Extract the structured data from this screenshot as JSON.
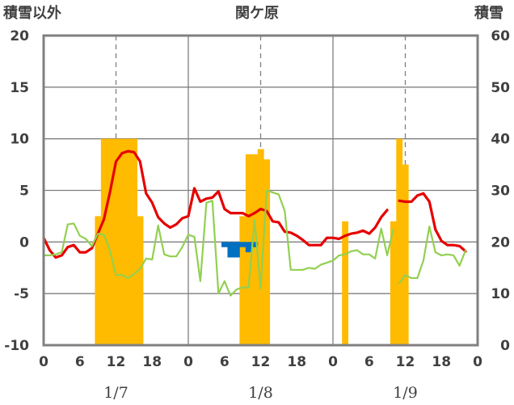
{
  "chart_data": {
    "type": "bar+line",
    "title": "関ケ原",
    "ylabel_left": "積雪以外",
    "ylabel_right": "積雪",
    "ylim_left": [
      -10,
      20
    ],
    "ylim_right": [
      0,
      60
    ],
    "yticks_left": [
      "-10",
      "-5",
      "0",
      "5",
      "10",
      "15",
      "20"
    ],
    "yticks_right": [
      "0",
      "10",
      "20",
      "30",
      "40",
      "50",
      "60"
    ],
    "xrange_hours": [
      0,
      72
    ],
    "xtick_labels": [
      "0",
      "6",
      "12",
      "18",
      "0",
      "6",
      "12",
      "18",
      "0",
      "6",
      "12",
      "18",
      "0"
    ],
    "date_labels": [
      "1/7",
      "1/8",
      "1/9"
    ],
    "grid": true,
    "colors": {
      "snow_depth": "#ffbb00",
      "precip": "#0070c0",
      "temperature": "#e60000",
      "humidity_line": "#92d050",
      "baseline": "#7030a0",
      "frame": "#808080"
    },
    "series": [
      {
        "kind": "bar",
        "axis": "right",
        "values": [
          [
            9,
            25
          ],
          [
            10,
            40
          ],
          [
            11,
            40
          ],
          [
            12,
            40
          ],
          [
            13,
            40
          ],
          [
            14,
            40
          ],
          [
            15,
            40
          ],
          [
            16,
            25
          ],
          [
            33,
            25
          ],
          [
            34,
            37
          ],
          [
            35,
            37
          ],
          [
            36,
            38
          ],
          [
            37,
            36
          ],
          [
            50,
            24
          ],
          [
            58,
            24
          ],
          [
            59,
            40
          ],
          [
            60,
            35
          ]
        ]
      },
      {
        "kind": "bar",
        "axis": "left",
        "values": [
          [
            30,
            -0.5
          ],
          [
            31,
            -1.5
          ],
          [
            32,
            -1.5
          ],
          [
            33,
            -0.5
          ],
          [
            34,
            -1.0
          ],
          [
            35,
            -0.5
          ]
        ]
      },
      {
        "kind": "line",
        "axis": "left",
        "values": [
          [
            0,
            0.4
          ],
          [
            1,
            -0.8
          ],
          [
            2,
            -1.5
          ],
          [
            3,
            -1.3
          ],
          [
            4,
            -0.5
          ],
          [
            5,
            -0.3
          ],
          [
            6,
            -1.0
          ],
          [
            7,
            -1.0
          ],
          [
            8,
            -0.6
          ],
          [
            9,
            0.8
          ],
          [
            10,
            2.2
          ],
          [
            11,
            4.8
          ],
          [
            12,
            7.8
          ],
          [
            13,
            8.6
          ],
          [
            14,
            8.8
          ],
          [
            15,
            8.7
          ],
          [
            16,
            7.8
          ],
          [
            17,
            4.7
          ],
          [
            18,
            3.8
          ],
          [
            19,
            2.4
          ],
          [
            20,
            1.8
          ],
          [
            21,
            1.4
          ],
          [
            22,
            1.7
          ],
          [
            23,
            2.3
          ],
          [
            24,
            2.5
          ],
          [
            25,
            5.2
          ],
          [
            26,
            3.9
          ],
          [
            27,
            4.2
          ],
          [
            28,
            4.3
          ],
          [
            29,
            4.9
          ],
          [
            30,
            3.2
          ],
          [
            31,
            2.8
          ],
          [
            32,
            2.8
          ],
          [
            33,
            2.8
          ],
          [
            34,
            2.5
          ],
          [
            35,
            2.8
          ],
          [
            36,
            3.2
          ],
          [
            37,
            3.0
          ],
          [
            38,
            2.0
          ],
          [
            39,
            1.9
          ],
          [
            40,
            1.0
          ],
          [
            41,
            0.9
          ],
          [
            42,
            0.6
          ],
          [
            43,
            0.2
          ],
          [
            44,
            -0.3
          ],
          [
            45,
            -0.3
          ],
          [
            46,
            -0.3
          ],
          [
            47,
            0.4
          ],
          [
            48,
            0.4
          ],
          [
            49,
            0.3
          ],
          [
            50,
            0.6
          ],
          [
            51,
            0.8
          ],
          [
            52,
            0.9
          ],
          [
            53,
            1.1
          ],
          [
            54,
            0.8
          ],
          [
            55,
            1.4
          ],
          [
            56,
            2.4
          ],
          [
            57,
            3.1
          ],
          [
            null,
            null
          ],
          [
            59,
            4.0
          ],
          [
            60,
            3.9
          ],
          [
            61,
            3.9
          ],
          [
            62,
            4.5
          ],
          [
            63,
            4.7
          ],
          [
            64,
            3.9
          ],
          [
            65,
            1.2
          ],
          [
            66,
            0.1
          ],
          [
            67,
            -0.3
          ],
          [
            68,
            -0.3
          ],
          [
            69,
            -0.4
          ],
          [
            70,
            -0.9
          ]
        ]
      },
      {
        "kind": "line",
        "axis": "left",
        "values": [
          [
            0,
            -1.3
          ],
          [
            1,
            -1.3
          ],
          [
            2,
            -1.2
          ],
          [
            3,
            -1.0
          ],
          [
            4,
            1.7
          ],
          [
            5,
            1.8
          ],
          [
            6,
            0.6
          ],
          [
            7,
            0.3
          ],
          [
            8,
            -0.4
          ],
          [
            9,
            0.8
          ],
          [
            10,
            0.7
          ],
          [
            11,
            -0.8
          ],
          [
            12,
            -3.2
          ],
          [
            13,
            -3.2
          ],
          [
            14,
            -3.5
          ],
          [
            15,
            -3.1
          ],
          [
            16,
            -2.6
          ],
          [
            17,
            -1.6
          ],
          [
            18,
            -1.7
          ],
          [
            19,
            1.6
          ],
          [
            20,
            -1.2
          ],
          [
            21,
            -1.4
          ],
          [
            22,
            -1.4
          ],
          [
            23,
            -0.5
          ],
          [
            24,
            0.7
          ],
          [
            25,
            0.5
          ],
          [
            26,
            -3.8
          ],
          [
            27,
            3.8
          ],
          [
            28,
            4.0
          ],
          [
            29,
            -5.0
          ],
          [
            30,
            -3.8
          ],
          [
            31,
            -5.2
          ],
          [
            32,
            -4.6
          ],
          [
            33,
            -4.4
          ],
          [
            34,
            -4.4
          ],
          [
            35,
            2.1
          ],
          [
            36,
            -4.5
          ],
          [
            37,
            5.0
          ],
          [
            38,
            4.8
          ],
          [
            39,
            4.6
          ],
          [
            40,
            3.0
          ],
          [
            41,
            -2.7
          ],
          [
            42,
            -2.7
          ],
          [
            43,
            -2.7
          ],
          [
            44,
            -2.5
          ],
          [
            45,
            -2.6
          ],
          [
            46,
            -2.2
          ],
          [
            47,
            -2.0
          ],
          [
            48,
            -1.8
          ],
          [
            49,
            -1.3
          ],
          [
            50,
            -1.2
          ],
          [
            51,
            -0.9
          ],
          [
            52,
            -0.8
          ],
          [
            53,
            -1.2
          ],
          [
            54,
            -1.2
          ],
          [
            55,
            -1.6
          ],
          [
            56,
            1.3
          ],
          [
            57,
            -1.3
          ],
          [
            58,
            1.2
          ],
          [
            null,
            null
          ],
          [
            59,
            -4.0
          ],
          [
            60,
            -3.2
          ],
          [
            61,
            -3.5
          ],
          [
            62,
            -3.5
          ],
          [
            63,
            -1.8
          ],
          [
            64,
            1.5
          ],
          [
            65,
            -1.0
          ],
          [
            66,
            -1.3
          ],
          [
            67,
            -1.2
          ],
          [
            68,
            -1.3
          ],
          [
            69,
            -2.3
          ],
          [
            70,
            -0.8
          ]
        ]
      },
      {
        "kind": "line",
        "axis": "left",
        "values": [
          [
            0,
            -10
          ],
          [
            72,
            -10
          ]
        ]
      }
    ]
  }
}
